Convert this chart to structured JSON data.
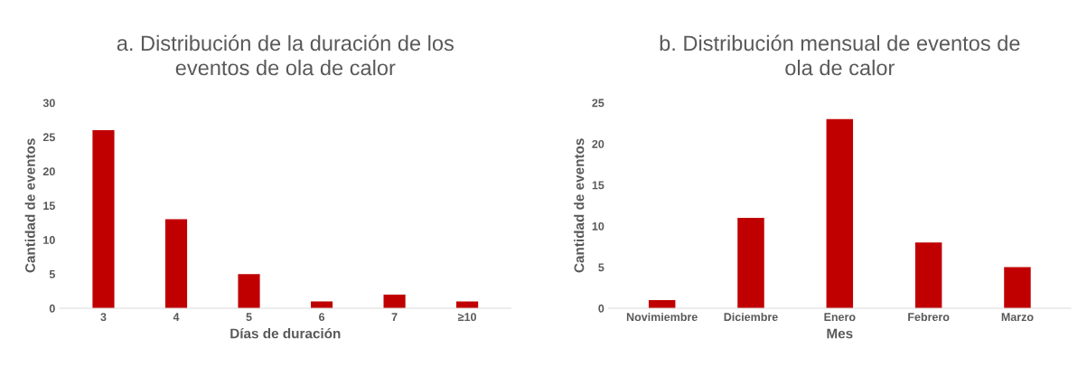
{
  "chart_data": [
    {
      "type": "bar",
      "title": "a. Distribución de la duración de los\neventos de ola de calor",
      "xlabel": "Días de duración",
      "ylabel": "Cantidad de eventos",
      "categories": [
        "3",
        "4",
        "5",
        "6",
        "7",
        "≥10"
      ],
      "values": [
        26,
        13,
        5,
        1,
        2,
        1
      ],
      "color": "#c00000",
      "ylim": [
        0,
        30
      ],
      "yticks": [
        0,
        5,
        10,
        15,
        20,
        25,
        30
      ],
      "grid": false
    },
    {
      "type": "bar",
      "title": "b. Distribución mensual de eventos de\nola de calor",
      "xlabel": "Mes",
      "ylabel": "Cantidad de eventos",
      "categories": [
        "Novimiembre",
        "Diciembre",
        "Enero",
        "Febrero",
        "Marzo"
      ],
      "values": [
        1,
        11,
        23,
        8,
        5
      ],
      "color": "#c00000",
      "ylim": [
        0,
        25
      ],
      "yticks": [
        0,
        5,
        10,
        15,
        20,
        25
      ],
      "grid": false
    }
  ]
}
